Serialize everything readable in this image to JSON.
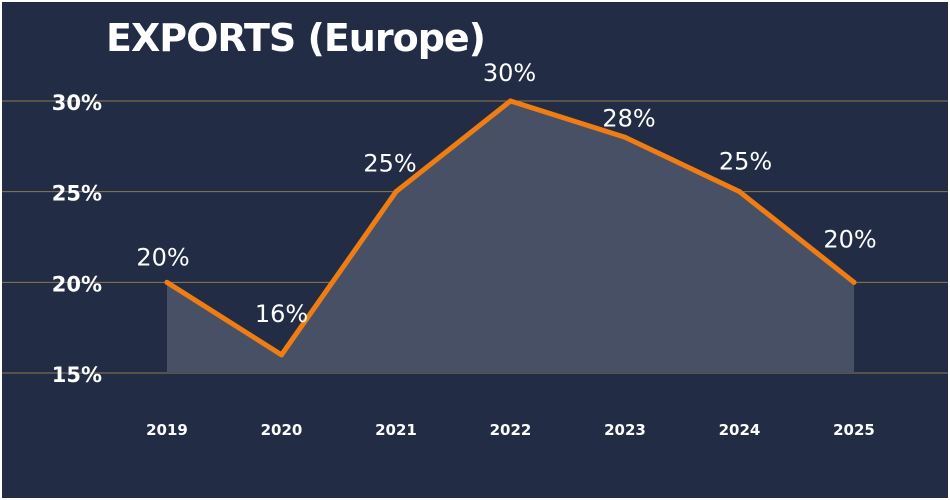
{
  "chart_data": {
    "type": "area",
    "title": "EXPORTS (Europe)",
    "categories": [
      "2019",
      "2020",
      "2021",
      "2022",
      "2023",
      "2024",
      "2025"
    ],
    "values": [
      20,
      16,
      25,
      30,
      28,
      25,
      20
    ],
    "data_labels": [
      "20%",
      "16%",
      "25%",
      "30%",
      "28%",
      "25%",
      "20%"
    ],
    "y_ticks": [
      15,
      20,
      25,
      30
    ],
    "y_tick_labels": [
      "15%",
      "20%",
      "25%",
      "30%"
    ],
    "ylim": [
      15,
      30
    ],
    "grid": true,
    "legend": "none",
    "colors": {
      "background": "#222d45",
      "line": "#f07d12",
      "area": "#485066",
      "grid": "#8a7a55",
      "text": "#ffffff"
    }
  }
}
